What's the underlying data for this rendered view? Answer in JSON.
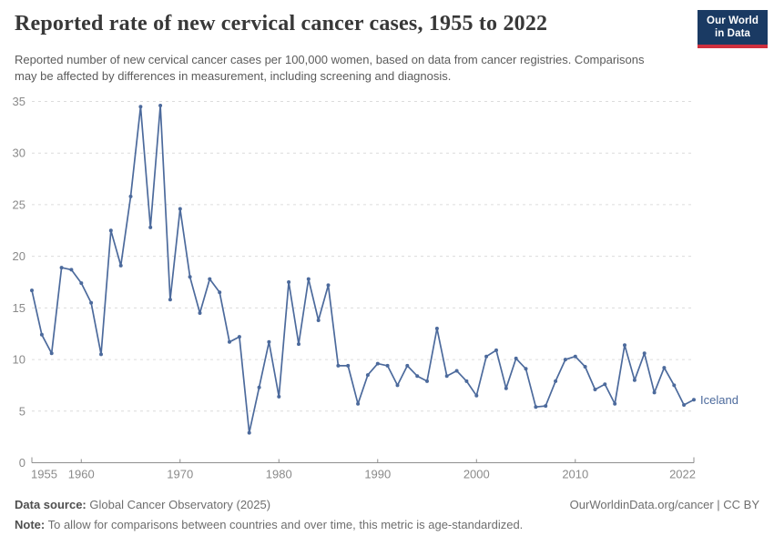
{
  "header": {
    "title": "Reported rate of new cervical cancer cases, 1955 to 2022",
    "subtitle": "Reported number of new cervical cancer cases per 100,000 women, based on data from cancer registries. Comparisons may be affected by differences in measurement, including screening and diagnosis.",
    "logo": {
      "line1": "Our World",
      "line2": "in Data"
    }
  },
  "chart_data": {
    "type": "line",
    "title": "Reported rate of new cervical cancer cases, 1955 to 2022",
    "xlabel": "",
    "ylabel": "",
    "xlim": [
      1955,
      2022
    ],
    "ylim": [
      0,
      35
    ],
    "yticks": [
      0,
      5,
      10,
      15,
      20,
      25,
      30,
      35
    ],
    "xticks": [
      1955,
      1960,
      1970,
      1980,
      1990,
      2000,
      2010,
      2022
    ],
    "grid": "horizontal-dashed",
    "legend_position": "end-of-line-label",
    "series": [
      {
        "name": "Iceland",
        "color": "#4C6A9C",
        "x": [
          1955,
          1956,
          1957,
          1958,
          1959,
          1960,
          1961,
          1962,
          1963,
          1964,
          1965,
          1966,
          1967,
          1968,
          1969,
          1970,
          1971,
          1972,
          1973,
          1974,
          1975,
          1976,
          1977,
          1978,
          1979,
          1980,
          1981,
          1982,
          1983,
          1984,
          1985,
          1986,
          1987,
          1988,
          1989,
          1990,
          1991,
          1992,
          1993,
          1994,
          1995,
          1996,
          1997,
          1998,
          1999,
          2000,
          2001,
          2002,
          2003,
          2004,
          2005,
          2006,
          2007,
          2008,
          2009,
          2010,
          2011,
          2012,
          2013,
          2014,
          2015,
          2016,
          2017,
          2018,
          2019,
          2020,
          2021,
          2022
        ],
        "values": [
          16.7,
          12.4,
          10.6,
          18.9,
          18.7,
          17.4,
          15.5,
          10.5,
          22.5,
          19.1,
          25.8,
          34.5,
          22.8,
          34.6,
          15.8,
          24.6,
          18.0,
          14.5,
          17.8,
          16.5,
          11.7,
          12.2,
          2.9,
          7.3,
          11.7,
          6.4,
          17.5,
          11.5,
          17.8,
          13.8,
          17.2,
          9.4,
          9.4,
          5.7,
          8.5,
          9.6,
          9.4,
          7.5,
          9.4,
          8.4,
          7.9,
          13.0,
          8.4,
          8.9,
          7.9,
          6.5,
          10.3,
          10.9,
          7.2,
          10.1,
          9.1,
          5.4,
          5.5,
          7.9,
          10.0,
          10.3,
          9.3,
          7.1,
          7.6,
          5.7,
          11.4,
          8.0,
          10.6,
          6.8,
          9.2,
          7.5,
          5.6,
          6.1
        ]
      }
    ]
  },
  "colors": {
    "line": "#4C6A9C",
    "grid": "#dcdcdc",
    "axis": "#8f8f8f",
    "tick_label": "#8a8a8a",
    "logo_bg": "#1a3a63",
    "logo_red": "#cf303e"
  },
  "footer": {
    "source_label": "Data source:",
    "source_value": "Global Cancer Observatory (2025)",
    "rights": "OurWorldinData.org/cancer | CC BY",
    "note_label": "Note:",
    "note_value": "To allow for comparisons between countries and over time, this metric is age-standardized."
  }
}
